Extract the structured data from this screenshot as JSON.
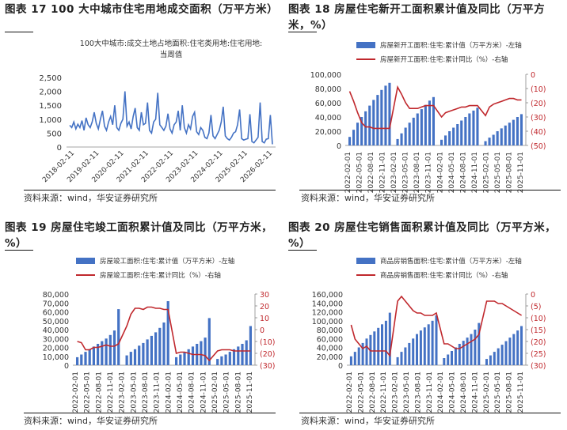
{
  "source": "资料来源：wind，华安证券研究所",
  "panels": [
    {
      "title": "图表 17 100 大中城市住宅用地成交面积（万平方米）"
    },
    {
      "title": "图表 18 房屋住宅新开工面积累计值及同比（万平方米，%）"
    },
    {
      "title": "图表 19 房屋住宅竣工面积累计值及同比（万平方米，%）"
    },
    {
      "title": "图表 20 房屋住宅销售面积累计值及同比（万平方米，%）"
    }
  ],
  "colors": {
    "bar": "#4472C4",
    "line": "#C0282D",
    "axisRight": "#C0282D",
    "text": "#333333"
  },
  "chart_data": [
    {
      "type": "line",
      "title": "100大中城市:成交土地占地面积:住宅类用地:住宅用地:当周值",
      "x_tick_labels": [
        "2018-02-11",
        "2019-02-11",
        "2020-02-11",
        "2021-02-11",
        "2022-02-11",
        "2023-02-11",
        "2024-02-11",
        "2025-02-11",
        "2026-02-11"
      ],
      "y_ticks": [
        "0",
        "500",
        "1,000",
        "1,500",
        "2,000",
        "2,500"
      ],
      "ylim": [
        0,
        2500
      ],
      "series": [
        {
          "name": "当周值",
          "color": "#4472C4",
          "values": [
            780,
            700,
            900,
            650,
            820,
            700,
            950,
            600,
            1050,
            800,
            700,
            900,
            1250,
            850,
            650,
            1000,
            1300,
            750,
            600,
            900,
            1100,
            800,
            1500,
            700,
            600,
            850,
            1000,
            2000,
            750,
            900,
            650,
            1100,
            1400,
            700,
            600,
            1250,
            800,
            850,
            1600,
            600,
            500,
            900,
            1000,
            1950,
            800,
            700,
            600,
            750,
            1200,
            650,
            500,
            800,
            900,
            1300,
            600,
            1500,
            700,
            500,
            800,
            650,
            1100,
            1250,
            550,
            450,
            700,
            600,
            350,
            300,
            500,
            1150,
            400,
            300,
            450,
            600,
            900,
            1450,
            400,
            300,
            250,
            350,
            500,
            550,
            800,
            1350,
            300,
            250,
            280,
            300,
            1180,
            200,
            150,
            250,
            350,
            1600,
            200,
            150,
            280,
            300,
            1150,
            100
          ]
        }
      ]
    },
    {
      "type": "bar+line",
      "legend": [
        "房屋新开工面积:住宅:累计值（万平方米）-左轴",
        "房屋新开工面积:住宅:累计同比（%）-右轴"
      ],
      "x_tick_labels": [
        "2022-02-01",
        "2022-05-01",
        "2022-08-01",
        "2022-11-01",
        "2023-02-01",
        "2023-05-01",
        "2023-08-01",
        "2023-11-01",
        "2024-02-01",
        "2024-05-01",
        "2024-08-01",
        "2024-11-01",
        "2025-02-01",
        "2025-05-01",
        "2025-08-01",
        "2025-11-01"
      ],
      "y_left_ticks": [
        "0",
        "20,000",
        "40,000",
        "60,000",
        "80,000",
        "100,000"
      ],
      "y_right_ticks": [
        "(50)",
        "(40)",
        "(30)",
        "(20)",
        "(10)",
        "0"
      ],
      "ylim_left": [
        0,
        100000
      ],
      "ylim_right": [
        -50,
        0
      ],
      "series": [
        {
          "name": "累计值",
          "axis": "left",
          "values": [
            12000,
            22000,
            32000,
            40000,
            48000,
            56000,
            64000,
            71000,
            78000,
            84000,
            88000,
            null,
            9000,
            17000,
            25000,
            32000,
            39000,
            45000,
            51000,
            57000,
            63000,
            68000,
            null,
            8000,
            14000,
            20000,
            25000,
            30000,
            35000,
            40000,
            45000,
            49000,
            53000,
            null,
            6000,
            11000,
            15000,
            20000,
            24000,
            28000,
            32000,
            36000,
            40000,
            44000
          ]
        },
        {
          "name": "累计同比",
          "axis": "right",
          "values": [
            -12,
            -19,
            -27,
            -34,
            -37,
            -37,
            -38,
            -38,
            -38,
            -38,
            -38,
            null,
            -9,
            -14,
            -20,
            -24,
            -24,
            -24,
            -23,
            -22,
            -22,
            -22,
            null,
            -30,
            -27,
            -26,
            -25,
            -24,
            -23,
            -23,
            -22,
            -22,
            -22,
            null,
            -29,
            -23,
            -21,
            -20,
            -19,
            -18,
            -17,
            -17,
            -18,
            -18
          ]
        }
      ]
    },
    {
      "type": "bar+line",
      "legend": [
        "房屋竣工面积:住宅:累计值（万平方米）-左轴",
        "房屋竣工面积:住宅:累计同比（%）-右轴"
      ],
      "x_tick_labels": [
        "2022-02-01",
        "2022-05-01",
        "2022-08-01",
        "2022-11-01",
        "2023-02-01",
        "2023-05-01",
        "2023-08-01",
        "2023-11-01",
        "2024-02-01",
        "2024-05-01",
        "2024-08-01",
        "2024-11-01",
        "2025-02-01",
        "2025-05-01",
        "2025-08-01",
        "2025-11-01"
      ],
      "y_left_ticks": [
        "0",
        "10,000",
        "20,000",
        "30,000",
        "40,000",
        "50,000",
        "60,000",
        "70,000",
        "80,000"
      ],
      "y_right_ticks": [
        "(30)",
        "(20)",
        "(10)",
        "0",
        "10",
        "20",
        "30"
      ],
      "ylim_left": [
        0,
        80000
      ],
      "ylim_right": [
        -30,
        30
      ],
      "series": [
        {
          "name": "累计值",
          "axis": "left",
          "values": [
            9000,
            12000,
            15000,
            18000,
            21000,
            24000,
            27000,
            30000,
            34000,
            39000,
            63000,
            null,
            11000,
            15000,
            18000,
            22000,
            25000,
            29000,
            33000,
            37000,
            42000,
            48000,
            72000,
            null,
            9000,
            12000,
            15000,
            18000,
            21000,
            24000,
            27000,
            31000,
            53000,
            null,
            7000,
            10000,
            12000,
            15000,
            18000,
            21000,
            24000,
            28000,
            44000
          ]
        },
        {
          "name": "累计同比",
          "axis": "right",
          "values": [
            -10,
            -11,
            -17,
            -17,
            -15,
            -15,
            -14,
            -13,
            -14,
            -14,
            -12,
            null,
            3,
            13,
            18,
            18,
            17,
            19,
            19,
            18,
            18,
            17,
            17,
            null,
            -20,
            -19,
            -19,
            -20,
            -21,
            -21,
            -21,
            -22,
            -26,
            null,
            -18,
            -17,
            -17,
            -17,
            -18,
            -18,
            -18,
            -18,
            -18
          ]
        }
      ]
    },
    {
      "type": "bar+line",
      "legend": [
        "商品房销售面积:住宅:累计值（万平方米）-左轴",
        "商品房销售面积:住宅:累计同比（%）-右轴"
      ],
      "x_tick_labels": [
        "2022-02-01",
        "2022-05-01",
        "2022-08-01",
        "2022-11-01",
        "2023-02-01",
        "2023-05-01",
        "2023-08-01",
        "2023-11-01",
        "2024-02-01",
        "2024-05-01",
        "2024-08-01",
        "2024-11-01",
        "2025-02-01",
        "2025-05-01",
        "2025-08-01",
        "2025-11-01"
      ],
      "y_left_ticks": [
        "0",
        "20,000",
        "40,000",
        "60,000",
        "80,000",
        "100,000",
        "120,000",
        "140,000",
        "160,000"
      ],
      "y_right_ticks": [
        "(30)",
        "(25)",
        "(20)",
        "(15)",
        "(10)",
        "(5)",
        "0"
      ],
      "ylim_left": [
        0,
        160000
      ],
      "ylim_right": [
        -30,
        0
      ],
      "series": [
        {
          "name": "累计值",
          "axis": "left",
          "values": [
            20000,
            30000,
            40000,
            50000,
            60000,
            68000,
            76000,
            84000,
            92000,
            100000,
            118000,
            null,
            18000,
            30000,
            40000,
            50000,
            60000,
            70000,
            78000,
            85000,
            92000,
            100000,
            112000,
            null,
            16000,
            24000,
            32000,
            40000,
            48000,
            55000,
            62000,
            70000,
            80000,
            95000,
            null,
            14000,
            22000,
            30000,
            38000,
            46000,
            54000,
            62000,
            70000,
            78000,
            88000
          ]
        },
        {
          "name": "累计同比",
          "axis": "right",
          "values": [
            -13,
            -19,
            -21,
            -23,
            -22,
            -24,
            -24,
            -24,
            -24,
            -24,
            -26,
            null,
            -3,
            -1,
            -3,
            -5,
            -7,
            -8,
            -8,
            -9,
            -9,
            -9,
            -8,
            null,
            -21,
            -21,
            -22,
            -23,
            -23,
            -22,
            -21,
            -20,
            -19,
            -17,
            null,
            -3,
            -3,
            -3,
            -4,
            -4,
            -5,
            -6,
            -7,
            -8,
            -9
          ]
        }
      ]
    }
  ]
}
